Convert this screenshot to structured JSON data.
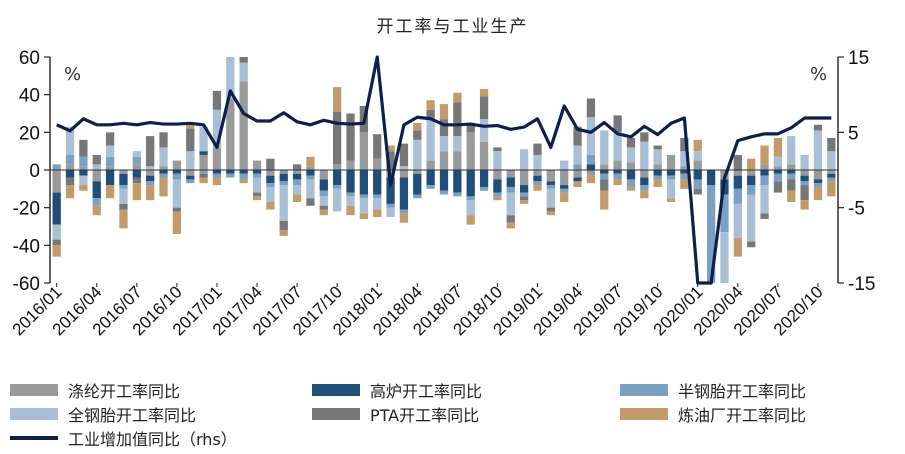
{
  "chart_data": {
    "type": "bar+line",
    "title": "开工率与工业生产",
    "left_unit": "%",
    "right_unit": "%",
    "ylim_left": [
      -60,
      60
    ],
    "yticks_left": [
      "60",
      "40",
      "20",
      "0",
      "-20",
      "-40",
      "-60"
    ],
    "ylim_right": [
      -15,
      15
    ],
    "yticks_right": [
      "15",
      "5",
      "-5",
      "-15"
    ],
    "x": [
      "2016/01",
      "2016/02",
      "2016/03",
      "2016/04",
      "2016/05",
      "2016/06",
      "2016/07",
      "2016/08",
      "2016/09",
      "2016/10",
      "2016/11",
      "2016/12",
      "2017/01",
      "2017/02",
      "2017/03",
      "2017/04",
      "2017/05",
      "2017/06",
      "2017/07",
      "2017/08",
      "2017/09",
      "2017/10",
      "2017/11",
      "2017/12",
      "2018/01",
      "2018/02",
      "2018/03",
      "2018/04",
      "2018/05",
      "2018/06",
      "2018/07",
      "2018/08",
      "2018/09",
      "2018/10",
      "2018/11",
      "2018/12",
      "2019/01",
      "2019/02",
      "2019/03",
      "2019/04",
      "2019/05",
      "2019/06",
      "2019/07",
      "2019/08",
      "2019/09",
      "2019/10",
      "2019/11",
      "2019/12",
      "2020/01",
      "2020/02",
      "2020/03",
      "2020/04",
      "2020/05",
      "2020/06",
      "2020/07",
      "2020/08",
      "2020/09",
      "2020/10",
      "2020/11"
    ],
    "xtick_labels": [
      "2016/01",
      "2016/04",
      "2016/07",
      "2016/10",
      "2017/01",
      "2017/04",
      "2017/07",
      "2017/10",
      "2018/01",
      "2018/04",
      "2018/07",
      "2018/10",
      "2019/01",
      "2019/04",
      "2019/07",
      "2019/10",
      "2020/01",
      "2020/04",
      "2020/07",
      "2020/10"
    ],
    "series": [
      {
        "name": "涤纶开工率同比",
        "type": "bar",
        "color": "#9a9a9a",
        "values": [
          -12,
          3,
          2,
          -6,
          2,
          -2,
          3,
          -3,
          2,
          5,
          -3,
          8,
          12,
          38,
          47,
          5,
          -3,
          -2,
          -2,
          2,
          -5,
          3,
          5,
          20,
          6,
          -4,
          -4,
          -2,
          5,
          10,
          10,
          20,
          15,
          -5,
          -4,
          -8,
          -3,
          -6,
          -8,
          -4,
          -3,
          3,
          5,
          4,
          -4,
          3,
          8,
          2,
          5,
          0,
          -5,
          -3,
          -3,
          3,
          2,
          3,
          -3,
          -5,
          -2
        ]
      },
      {
        "name": "高炉开工率同比",
        "type": "bar",
        "color": "#1f4e79",
        "values": [
          -17,
          -4,
          -3,
          -9,
          -8,
          -6,
          -4,
          -3,
          -2,
          -2,
          -2,
          2,
          -2,
          -2,
          -2,
          -2,
          -4,
          -4,
          -3,
          -3,
          -6,
          -8,
          -12,
          -13,
          -13,
          -14,
          -17,
          -11,
          -8,
          -11,
          -12,
          -14,
          -9,
          -7,
          -5,
          -4,
          -3,
          -2,
          -2,
          -2,
          3,
          -2,
          -2,
          -5,
          -4,
          -3,
          -3,
          -2,
          -5,
          -8,
          -8,
          -7,
          -5,
          -3,
          -2,
          -2,
          -3,
          -2,
          -2
        ]
      },
      {
        "name": "半钢胎开工率同比",
        "type": "bar",
        "color": "#7aa0c4",
        "values": [
          3,
          5,
          5,
          -4,
          5,
          -2,
          4,
          -2,
          -2,
          -3,
          -2,
          -2,
          -2,
          -2,
          -3,
          -2,
          -2,
          -2,
          -3,
          -2,
          -3,
          -2,
          -2,
          -2,
          -2,
          -2,
          -2,
          -2,
          -2,
          -2,
          -2,
          -2,
          -2,
          -2,
          -3,
          -2,
          -2,
          -2,
          -2,
          3,
          5,
          -3,
          -3,
          -4,
          -3,
          -2,
          -2,
          -3,
          -5,
          -55,
          -20,
          -8,
          -5,
          -5,
          -4,
          -3,
          -2,
          -2,
          -2
        ]
      },
      {
        "name": "全钢胎开工率同比",
        "type": "bar",
        "color": "#a8bfd6",
        "values": [
          -8,
          15,
          -5,
          3,
          6,
          -8,
          3,
          2,
          10,
          -15,
          10,
          13,
          20,
          34,
          10,
          -8,
          -8,
          -19,
          -5,
          -10,
          -5,
          -12,
          -5,
          -8,
          -6,
          -5,
          2,
          16,
          22,
          8,
          8,
          -8,
          12,
          10,
          -12,
          11,
          8,
          -10,
          5,
          10,
          20,
          18,
          15,
          8,
          15,
          8,
          -10,
          8,
          5,
          -28,
          -55,
          -18,
          -25,
          -15,
          5,
          15,
          8,
          21,
          10
        ]
      },
      {
        "name": "PTA开工率同比",
        "type": "bar",
        "color": "#777777",
        "values": [
          -3,
          -4,
          9,
          5,
          7,
          -3,
          -3,
          16,
          8,
          -2,
          12,
          -2,
          10,
          10,
          30,
          -2,
          6,
          -5,
          3,
          -4,
          -2,
          28,
          25,
          14,
          13,
          10,
          12,
          5,
          5,
          9,
          18,
          5,
          12,
          2,
          -4,
          -2,
          6,
          -2,
          0,
          10,
          10,
          -6,
          9,
          5,
          5,
          2,
          0,
          7,
          -3,
          -40,
          -20,
          8,
          -3,
          -3,
          -6,
          -6,
          -8,
          3,
          7
        ]
      },
      {
        "name": "炼油厂开工率同比",
        "type": "bar",
        "color": "#c39b6b",
        "values": [
          -6,
          -7,
          -3,
          -5,
          -7,
          -10,
          -9,
          -8,
          -10,
          -12,
          2,
          -3,
          -4,
          3,
          -2,
          -2,
          -4,
          -3,
          -4,
          5,
          -3,
          13,
          -5,
          -3,
          -4,
          3,
          -5,
          4,
          5,
          8,
          5,
          -5,
          4,
          -2,
          -3,
          -2,
          -3,
          -2,
          -5,
          -3,
          -4,
          -10,
          -3,
          -2,
          -4,
          -4,
          -2,
          -5,
          6,
          -8,
          -10,
          -10,
          6,
          10,
          10,
          -6,
          -5,
          -7,
          -8
        ]
      },
      {
        "name": "工业增加值同比（rhs）",
        "type": "line",
        "axis": "right",
        "color": "#0d1f4d",
        "values": [
          6.0,
          5.2,
          6.8,
          6.0,
          6.0,
          6.2,
          6.0,
          6.3,
          6.1,
          6.1,
          6.2,
          6.0,
          3.0,
          10.5,
          7.5,
          6.5,
          6.5,
          7.6,
          6.4,
          6.0,
          6.6,
          6.2,
          6.1,
          6.2,
          15.3,
          -2.0,
          6.0,
          7.0,
          6.8,
          6.0,
          6.0,
          6.1,
          5.8,
          5.9,
          5.4,
          5.7,
          6.8,
          3.0,
          8.5,
          5.4,
          5.0,
          6.3,
          4.8,
          4.4,
          5.8,
          4.7,
          6.2,
          6.9,
          -15.0,
          -15.0,
          -1.1,
          3.9,
          4.4,
          4.8,
          4.8,
          5.6,
          6.9,
          6.9,
          6.9
        ]
      }
    ],
    "legend_position": "bottom"
  }
}
